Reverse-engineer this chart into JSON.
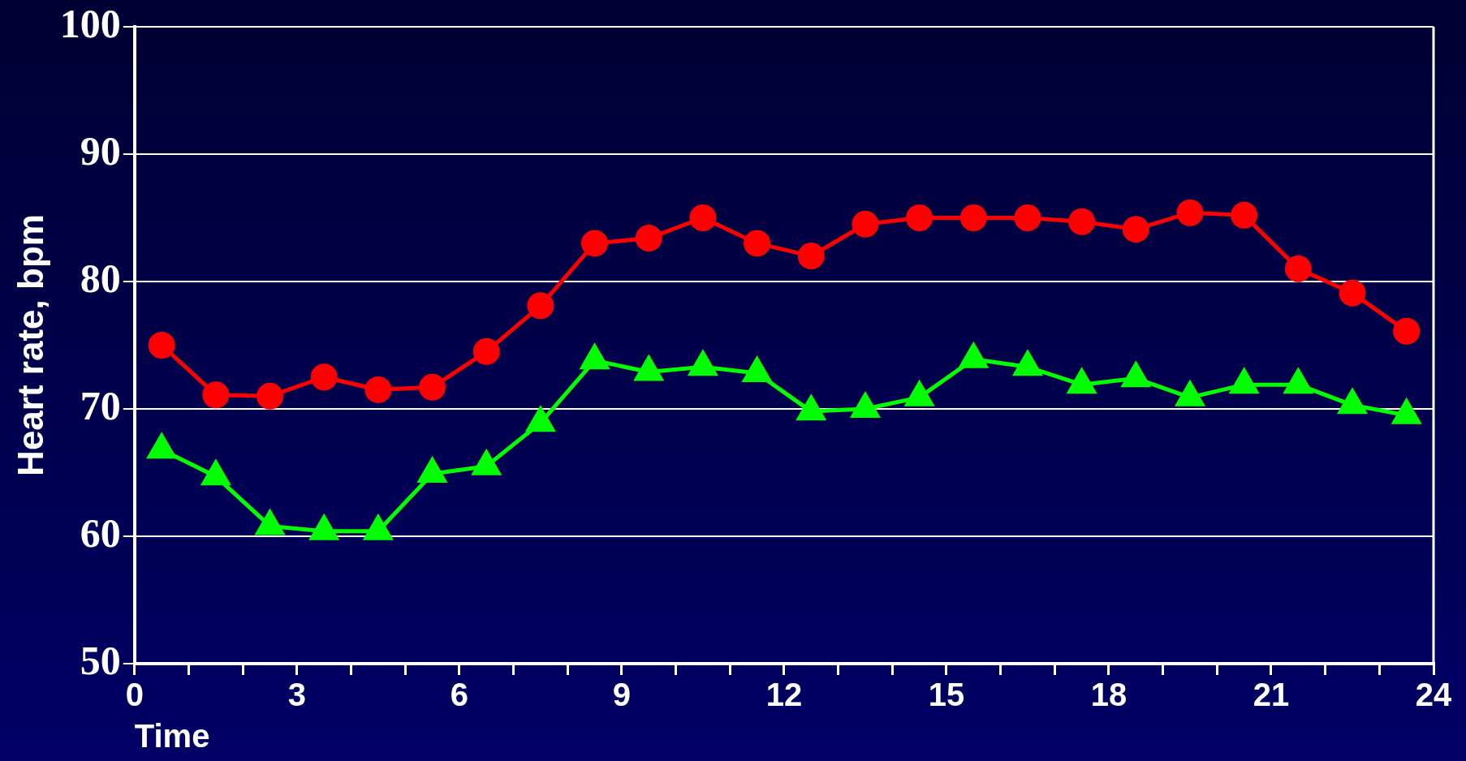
{
  "chart_data": {
    "type": "line",
    "xlabel": "Time",
    "ylabel": "Heart rate, bpm",
    "x": [
      0.5,
      1.5,
      2.5,
      3.5,
      4.5,
      5.5,
      6.5,
      7.5,
      8.5,
      9.5,
      10.5,
      11.5,
      12.5,
      13.5,
      14.5,
      15.5,
      16.5,
      17.5,
      18.5,
      19.5,
      20.5,
      21.5,
      22.5,
      23.5
    ],
    "series": [
      {
        "color": "#ff0000",
        "marker": "circle",
        "values": [
          75,
          71.1,
          71,
          72.5,
          71.5,
          71.7,
          74.5,
          78.1,
          83,
          83.4,
          85,
          83,
          82,
          84.5,
          85,
          85,
          85,
          84.7,
          84.1,
          85.4,
          85.2,
          81,
          79.1,
          76.1
        ]
      },
      {
        "color": "#00ff00",
        "marker": "triangle",
        "values": [
          66.8,
          64.7,
          60.8,
          60.4,
          60.4,
          64.9,
          65.5,
          68.9,
          73.8,
          72.9,
          73.3,
          72.8,
          69.8,
          70,
          70.9,
          73.9,
          73.3,
          71.9,
          72.4,
          70.9,
          71.9,
          71.9,
          70.3,
          69.5
        ]
      }
    ],
    "xlim": [
      0,
      24
    ],
    "xticks": [
      0,
      {
        "value": 1,
        "label": null
      },
      {
        "value": 2,
        "label": null
      },
      3,
      {
        "value": 4,
        "label": null
      },
      {
        "value": 5,
        "label": null
      },
      6,
      {
        "value": 7,
        "label": null
      },
      {
        "value": 8,
        "label": null
      },
      9,
      {
        "value": 10,
        "label": null
      },
      {
        "value": 11,
        "label": null
      },
      12,
      {
        "value": 13,
        "label": null
      },
      {
        "value": 14,
        "label": null
      },
      15,
      {
        "value": 16,
        "label": null
      },
      {
        "value": 17,
        "label": null
      },
      18,
      {
        "value": 19,
        "label": null
      },
      {
        "value": 20,
        "label": null
      },
      21,
      {
        "value": 22,
        "label": null
      },
      {
        "value": 23,
        "label": null
      },
      24
    ],
    "ylim": [
      50,
      100
    ],
    "yticks": [
      50,
      60,
      70,
      80,
      90,
      100
    ],
    "grid": "y",
    "legend": false,
    "line_style": "solid"
  }
}
